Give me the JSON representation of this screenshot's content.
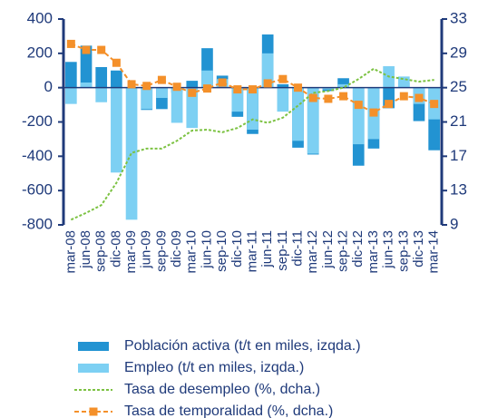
{
  "chart_data": {
    "type": "bar_line",
    "categories": [
      "mar-08",
      "jun-08",
      "sep-08",
      "dic-08",
      "mar-09",
      "jun-09",
      "sep-09",
      "dic-09",
      "mar-10",
      "jun-10",
      "sep-10",
      "dic-10",
      "mar-11",
      "jun-11",
      "sep-11",
      "dic-11",
      "mar-12",
      "jun-12",
      "sep-12",
      "dic-12",
      "mar-13",
      "jun-13",
      "sep-13",
      "dic-13",
      "mar-14"
    ],
    "series": [
      {
        "name": "Población activa (t/t en miles, izqda.)",
        "color": "#2293d2",
        "kind": "bar",
        "values": [
          150,
          245,
          120,
          100,
          0,
          -130,
          -125,
          -30,
          40,
          230,
          70,
          -170,
          -270,
          310,
          20,
          -350,
          -390,
          -20,
          55,
          -455,
          -355,
          -120,
          30,
          -195,
          -365
        ]
      },
      {
        "name": "Empleo (t/t en miles, izqda.)",
        "color": "#7dd0f3",
        "kind": "bar",
        "values": [
          -95,
          30,
          -85,
          -495,
          -770,
          -125,
          -60,
          -205,
          -235,
          100,
          50,
          -140,
          -245,
          200,
          -140,
          -310,
          -385,
          -10,
          20,
          -330,
          -300,
          125,
          65,
          -95,
          -185
        ]
      },
      {
        "name": "Tasa de desempleo (%, dcha.)",
        "color": "#7cc242",
        "kind": "line",
        "axis": "y2",
        "values": [
          9.6,
          10.4,
          11.3,
          13.9,
          17.4,
          17.9,
          17.9,
          18.8,
          20.0,
          20.1,
          19.8,
          20.3,
          21.3,
          20.9,
          21.5,
          22.9,
          24.4,
          24.6,
          25.0,
          26.0,
          27.2,
          26.3,
          26.0,
          25.7,
          25.9
        ]
      },
      {
        "name": "Tasa de temporalidad (%, dcha.)",
        "color": "#f4902a",
        "kind": "line-marker",
        "axis": "y2",
        "values": [
          30.1,
          29.4,
          29.4,
          27.9,
          25.4,
          25.2,
          25.9,
          25.1,
          24.4,
          24.9,
          25.6,
          24.8,
          24.8,
          25.5,
          26.0,
          25.0,
          23.8,
          23.7,
          24.0,
          23.0,
          22.1,
          23.1,
          24.0,
          23.8,
          23.1
        ]
      }
    ],
    "ylim": [
      -800,
      400
    ],
    "yticks": [
      -800,
      -600,
      -400,
      -200,
      0,
      200,
      400
    ],
    "y2lim": [
      9,
      33
    ],
    "y2ticks": [
      9,
      13,
      17,
      21,
      25,
      29,
      33
    ]
  }
}
